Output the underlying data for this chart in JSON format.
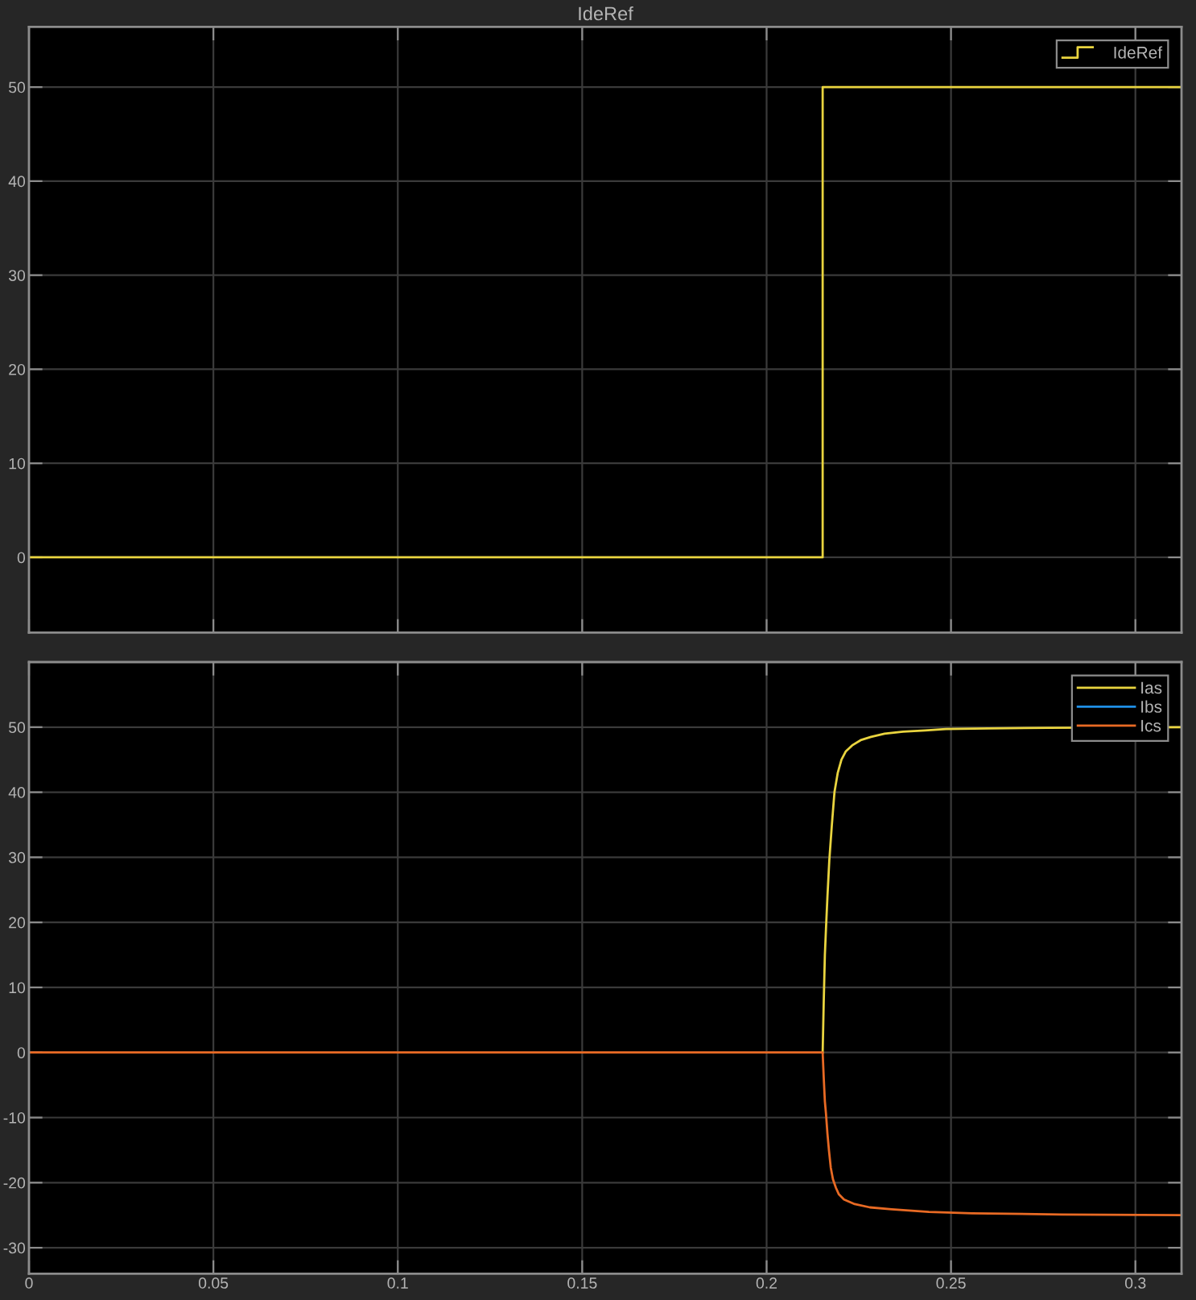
{
  "chart_data": [
    {
      "type": "step",
      "title": "IdeRef",
      "x": [
        0,
        0.2152,
        0.3125
      ],
      "series": [
        {
          "name": "IdeRef",
          "color": "#e9d43f",
          "values": [
            0,
            50,
            50
          ]
        }
      ],
      "xlim": [
        0,
        0.3125
      ],
      "xticks": [
        0,
        0.05,
        0.1,
        0.15,
        0.2,
        0.25,
        0.3
      ],
      "ylim": [
        -8,
        56.4
      ],
      "yticks": [
        0,
        10,
        20,
        30,
        40,
        50
      ],
      "grid": true,
      "legend": "top right",
      "tick_labels": "y"
    },
    {
      "type": "line",
      "series": [
        {
          "name": "Ias",
          "color": "#e9d43f",
          "x": [
            0.2152,
            0.2155,
            0.2158,
            0.2161,
            0.2165,
            0.217,
            0.2177,
            0.2184,
            0.2193,
            0.2203,
            0.2215,
            0.2232,
            0.2255,
            0.2283,
            0.232,
            0.237,
            0.243,
            0.2486,
            0.26,
            0.2761,
            0.3125
          ],
          "values": [
            0,
            8,
            15,
            19,
            24,
            29.5,
            35,
            40,
            43,
            45,
            46.3,
            47.2,
            48,
            48.5,
            49,
            49.3,
            49.5,
            49.7,
            49.8,
            49.9,
            50
          ]
        },
        {
          "name": "Ibs",
          "color": "#1f8fe6"
        },
        {
          "name": "Ics",
          "color": "#e86a24",
          "x": [
            0,
            0.2152,
            0.2155,
            0.2158,
            0.2161,
            0.2165,
            0.2169,
            0.2174,
            0.218,
            0.2188,
            0.2196,
            0.221,
            0.2239,
            0.228,
            0.2339,
            0.244,
            0.2557,
            0.28,
            0.3125
          ],
          "values": [
            0,
            0,
            -4,
            -7.5,
            -9.4,
            -12.5,
            -15,
            -17.7,
            -19.5,
            -20.8,
            -21.8,
            -22.6,
            -23.3,
            -23.8,
            -24.1,
            -24.5,
            -24.7,
            -24.9,
            -25
          ]
        }
      ],
      "xlim": [
        0,
        0.3125
      ],
      "xticks": [
        0,
        0.05,
        0.1,
        0.15,
        0.2,
        0.25,
        0.3
      ],
      "ylim": [
        -34,
        60
      ],
      "yticks": [
        -30,
        -20,
        -10,
        0,
        10,
        20,
        30,
        40,
        50
      ],
      "grid": true,
      "legend": "top right"
    }
  ]
}
